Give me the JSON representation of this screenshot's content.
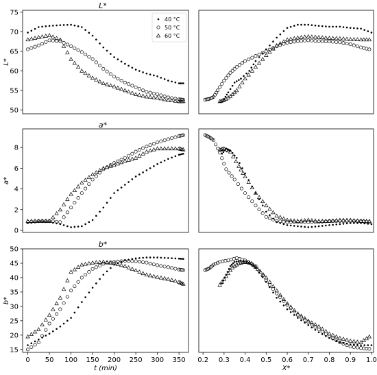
{
  "legend": {
    "position": "top-right",
    "entries": [
      {
        "label": "40 °C",
        "marker": "dot"
      },
      {
        "label": "50 °C",
        "marker": "circle"
      },
      {
        "label": "60 °C",
        "marker": "triangle"
      }
    ]
  },
  "colors": {
    "marker": "#000000",
    "axes": "#000000",
    "background": "#ffffff"
  },
  "chart_data": [
    {
      "type": "scatter",
      "panel": "L-time",
      "title": "L*",
      "ylabel": "L*",
      "xlabel": "",
      "xlim": [
        -12,
        372
      ],
      "ylim": [
        49,
        75.5
      ],
      "yticks": [
        50,
        55,
        60,
        65,
        70,
        75
      ],
      "xticks": [],
      "grid": false,
      "legend": "top-right",
      "series": [
        {
          "name": "40 °C",
          "marker": "dot",
          "x": [
            0,
            25,
            50,
            75,
            100,
            125,
            150,
            175,
            200,
            225,
            250,
            275,
            300,
            325,
            350,
            360
          ],
          "y": [
            69.8,
            71.2,
            71.5,
            71.7,
            71.8,
            71.2,
            69.0,
            66.0,
            63.5,
            61.8,
            60.3,
            59.3,
            58.6,
            57.5,
            56.8,
            56.8
          ]
        },
        {
          "name": "50 °C",
          "marker": "circle",
          "x": [
            0,
            25,
            50,
            75,
            100,
            125,
            150,
            175,
            200,
            225,
            250,
            275,
            300,
            325,
            350,
            360
          ],
          "y": [
            65.5,
            66.5,
            67.8,
            67.6,
            66.3,
            64.8,
            63.0,
            60.5,
            58.5,
            57.0,
            55.8,
            54.6,
            54.0,
            53.2,
            52.7,
            52.6
          ]
        },
        {
          "name": "60 °C",
          "marker": "triangle",
          "x": [
            0,
            25,
            50,
            75,
            100,
            125,
            150,
            175,
            200,
            225,
            250,
            275,
            300,
            325,
            350,
            360
          ],
          "y": [
            68.0,
            68.6,
            69.1,
            68.0,
            63.0,
            60.0,
            58.2,
            56.8,
            56.0,
            55.0,
            54.0,
            53.4,
            53.1,
            52.5,
            52.2,
            52.2
          ]
        }
      ]
    },
    {
      "type": "scatter",
      "panel": "L-X",
      "title": "",
      "xlabel": "",
      "ylabel": "",
      "xlim": [
        0.18,
        1.01
      ],
      "ylim": [
        49,
        75.5
      ],
      "xticks": [],
      "yticks": [],
      "grid": false,
      "series": [
        {
          "name": "40 °C",
          "marker": "dot",
          "x": [
            0.3,
            0.32,
            0.35,
            0.38,
            0.42,
            0.45,
            0.5,
            0.55,
            0.6,
            0.65,
            0.7,
            0.75,
            0.8,
            0.85,
            0.9,
            0.95,
            1.0
          ],
          "y": [
            52.8,
            54.5,
            57.0,
            58.0,
            60.0,
            62.5,
            65.5,
            68.5,
            71.0,
            71.8,
            71.8,
            71.5,
            71.3,
            71.3,
            71.0,
            70.8,
            69.8
          ]
        },
        {
          "name": "50 °C",
          "marker": "circle",
          "x": [
            0.21,
            0.23,
            0.25,
            0.27,
            0.3,
            0.33,
            0.36,
            0.4,
            0.45,
            0.5,
            0.55,
            0.6,
            0.65,
            0.7,
            0.75,
            0.8,
            0.85,
            0.9,
            0.95,
            0.99
          ],
          "y": [
            52.6,
            52.8,
            53.3,
            55.0,
            57.5,
            59.5,
            61.0,
            62.5,
            63.8,
            65.0,
            66.3,
            67.2,
            67.6,
            67.8,
            67.6,
            67.5,
            67.3,
            66.8,
            66.0,
            65.5
          ]
        },
        {
          "name": "60 °C",
          "marker": "triangle",
          "x": [
            0.28,
            0.3,
            0.33,
            0.36,
            0.4,
            0.45,
            0.5,
            0.55,
            0.6,
            0.65,
            0.7,
            0.75,
            0.8,
            0.85,
            0.9,
            0.95,
            0.99
          ],
          "y": [
            52.2,
            52.5,
            53.5,
            55.0,
            58.0,
            61.0,
            64.0,
            66.5,
            68.0,
            68.5,
            68.8,
            68.6,
            68.4,
            68.3,
            68.1,
            68.0,
            68.0
          ]
        }
      ]
    },
    {
      "type": "scatter",
      "panel": "a-time",
      "title": "a*",
      "ylabel": "a*",
      "xlabel": "",
      "xlim": [
        -12,
        372
      ],
      "ylim": [
        -0.2,
        9.8
      ],
      "yticks": [
        0,
        2,
        4,
        6,
        8
      ],
      "xticks": [],
      "grid": false,
      "legend": "none",
      "series": [
        {
          "name": "40 °C",
          "marker": "dot",
          "x": [
            0,
            25,
            50,
            75,
            100,
            125,
            150,
            175,
            200,
            225,
            250,
            275,
            300,
            325,
            350,
            360
          ],
          "y": [
            0.7,
            0.8,
            0.8,
            0.6,
            0.3,
            0.4,
            1.0,
            2.2,
            3.6,
            4.4,
            5.2,
            5.8,
            6.4,
            6.9,
            7.3,
            7.4
          ]
        },
        {
          "name": "50 °C",
          "marker": "circle",
          "x": [
            0,
            25,
            50,
            75,
            100,
            125,
            150,
            175,
            200,
            225,
            250,
            275,
            300,
            325,
            350,
            360
          ],
          "y": [
            0.8,
            0.9,
            0.9,
            0.8,
            2.2,
            3.6,
            4.9,
            5.9,
            6.5,
            7.0,
            7.6,
            8.1,
            8.5,
            8.8,
            9.1,
            9.2
          ]
        },
        {
          "name": "60 °C",
          "marker": "triangle",
          "x": [
            0,
            25,
            50,
            75,
            100,
            125,
            150,
            175,
            200,
            225,
            250,
            275,
            300,
            325,
            350,
            360
          ],
          "y": [
            0.9,
            0.9,
            0.9,
            2.0,
            3.5,
            4.6,
            5.4,
            6.0,
            6.3,
            6.7,
            7.0,
            7.6,
            7.9,
            7.9,
            7.9,
            7.8
          ]
        }
      ]
    },
    {
      "type": "scatter",
      "panel": "a-X",
      "title": "",
      "xlabel": "",
      "ylabel": "",
      "xlim": [
        0.18,
        1.01
      ],
      "ylim": [
        -0.2,
        9.8
      ],
      "xticks": [],
      "yticks": [],
      "grid": false,
      "series": [
        {
          "name": "40 °C",
          "marker": "dot",
          "x": [
            0.29,
            0.31,
            0.33,
            0.36,
            0.4,
            0.45,
            0.5,
            0.55,
            0.6,
            0.65,
            0.7,
            0.75,
            0.8,
            0.85,
            0.9,
            0.95,
            1.0
          ],
          "y": [
            7.4,
            7.9,
            7.7,
            7.0,
            5.5,
            3.6,
            1.8,
            0.8,
            0.5,
            0.4,
            0.3,
            0.4,
            0.5,
            0.6,
            0.7,
            0.7,
            0.6
          ]
        },
        {
          "name": "50 °C",
          "marker": "circle",
          "x": [
            0.21,
            0.23,
            0.25,
            0.28,
            0.31,
            0.35,
            0.4,
            0.45,
            0.5,
            0.55,
            0.6,
            0.65,
            0.7,
            0.75,
            0.8,
            0.85,
            0.9,
            0.95,
            0.99
          ],
          "y": [
            9.2,
            9.0,
            8.7,
            7.5,
            5.9,
            4.9,
            3.6,
            2.4,
            1.3,
            0.9,
            0.8,
            0.8,
            0.8,
            0.8,
            0.9,
            0.9,
            0.9,
            0.9,
            0.8
          ]
        },
        {
          "name": "60 °C",
          "marker": "triangle",
          "x": [
            0.28,
            0.3,
            0.33,
            0.37,
            0.4,
            0.45,
            0.5,
            0.55,
            0.6,
            0.65,
            0.7,
            0.75,
            0.8,
            0.85,
            0.9,
            0.95,
            0.99
          ],
          "y": [
            7.8,
            7.9,
            7.6,
            6.2,
            5.2,
            3.6,
            2.4,
            1.4,
            1.0,
            0.9,
            1.0,
            0.9,
            0.9,
            1.0,
            1.0,
            0.9,
            0.9
          ]
        }
      ]
    },
    {
      "type": "scatter",
      "panel": "b-time",
      "title": "b*",
      "ylabel": "b*",
      "xlabel": "t (min)",
      "xlim": [
        -12,
        372
      ],
      "ylim": [
        14,
        50
      ],
      "yticks": [
        15,
        20,
        25,
        30,
        35,
        40,
        45,
        50
      ],
      "xticks": [
        0,
        50,
        100,
        150,
        200,
        250,
        300,
        350
      ],
      "grid": false,
      "legend": "none",
      "series": [
        {
          "name": "40 °C",
          "marker": "dot",
          "x": [
            0,
            25,
            50,
            75,
            100,
            125,
            150,
            175,
            200,
            225,
            250,
            275,
            300,
            325,
            350,
            360
          ],
          "y": [
            16.5,
            18.5,
            20.5,
            23.0,
            26.0,
            31.5,
            36.5,
            41.0,
            44.5,
            46.0,
            46.7,
            47.0,
            47.0,
            46.8,
            46.6,
            46.5
          ]
        },
        {
          "name": "50 °C",
          "marker": "circle",
          "x": [
            0,
            25,
            50,
            75,
            100,
            125,
            150,
            175,
            200,
            225,
            250,
            275,
            300,
            325,
            350,
            360
          ],
          "y": [
            15.0,
            17.5,
            24.0,
            29.0,
            35.5,
            40.0,
            43.0,
            44.8,
            45.5,
            45.8,
            45.7,
            45.2,
            44.3,
            43.6,
            42.8,
            42.6
          ]
        },
        {
          "name": "60 °C",
          "marker": "triangle",
          "x": [
            0,
            25,
            50,
            75,
            100,
            125,
            150,
            175,
            200,
            225,
            250,
            275,
            300,
            325,
            350,
            360
          ],
          "y": [
            19.5,
            22.0,
            27.0,
            33.0,
            42.0,
            44.5,
            45.2,
            45.5,
            45.0,
            44.0,
            42.5,
            41.0,
            40.2,
            39.5,
            38.5,
            37.8
          ]
        }
      ]
    },
    {
      "type": "scatter",
      "panel": "b-X",
      "title": "",
      "xlabel": "X*",
      "ylabel": "",
      "xlim": [
        0.18,
        1.01
      ],
      "ylim": [
        14,
        50
      ],
      "xticks": [
        0.2,
        0.3,
        0.4,
        0.5,
        0.6,
        0.7,
        0.8,
        0.9,
        1.0
      ],
      "yticks": [],
      "grid": false,
      "series": [
        {
          "name": "40 °C",
          "marker": "dot",
          "x": [
            0.29,
            0.31,
            0.33,
            0.35,
            0.38,
            0.42,
            0.45,
            0.5,
            0.55,
            0.6,
            0.65,
            0.7,
            0.75,
            0.8,
            0.85,
            0.9,
            0.95,
            1.0
          ],
          "y": [
            38.0,
            41.0,
            44.0,
            45.5,
            45.8,
            45.0,
            43.5,
            38.5,
            33.0,
            29.0,
            26.0,
            23.5,
            21.0,
            19.0,
            17.5,
            16.8,
            16.5,
            16.5
          ]
        },
        {
          "name": "50 °C",
          "marker": "circle",
          "x": [
            0.21,
            0.23,
            0.25,
            0.28,
            0.32,
            0.36,
            0.4,
            0.45,
            0.5,
            0.55,
            0.6,
            0.65,
            0.7,
            0.75,
            0.8,
            0.85,
            0.9,
            0.95,
            0.99
          ],
          "y": [
            42.6,
            43.2,
            44.5,
            45.5,
            46.0,
            46.8,
            46.0,
            44.0,
            39.0,
            34.5,
            30.5,
            27.0,
            24.5,
            22.0,
            19.5,
            17.5,
            16.0,
            15.5,
            15.2
          ]
        },
        {
          "name": "60 °C",
          "marker": "triangle",
          "x": [
            0.28,
            0.31,
            0.34,
            0.37,
            0.4,
            0.43,
            0.46,
            0.5,
            0.55,
            0.6,
            0.65,
            0.7,
            0.75,
            0.8,
            0.85,
            0.9,
            0.95,
            0.99
          ],
          "y": [
            37.5,
            40.5,
            43.5,
            45.0,
            45.5,
            45.0,
            43.0,
            40.0,
            35.5,
            31.0,
            27.5,
            25.0,
            23.0,
            20.5,
            19.0,
            18.0,
            17.5,
            19.5
          ]
        }
      ]
    }
  ]
}
